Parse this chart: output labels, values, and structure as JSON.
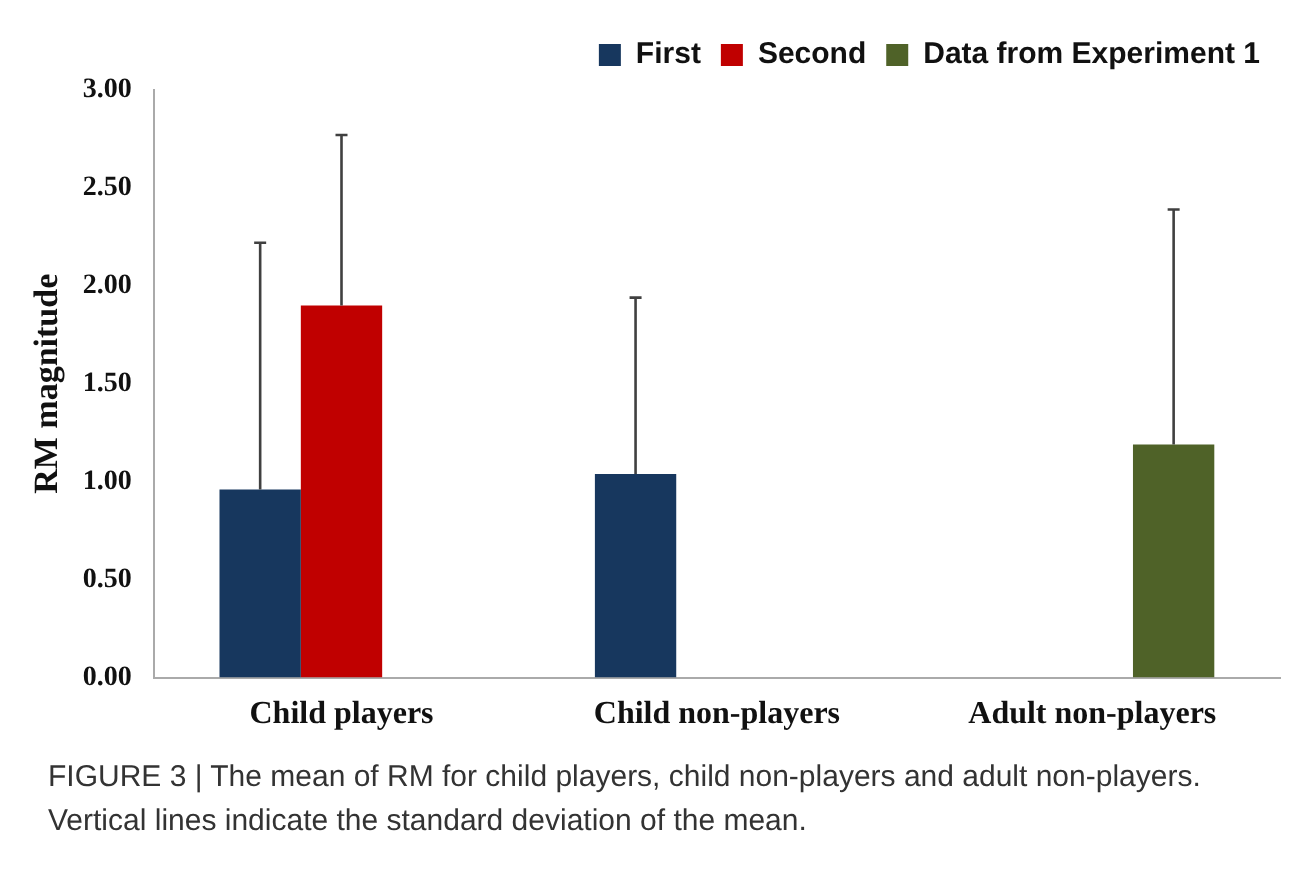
{
  "chart_data": {
    "type": "bar",
    "ylabel": "RM magnitude",
    "categories": [
      "Child players",
      "Child non-players",
      "Adult non-players"
    ],
    "series": [
      {
        "name": "First",
        "color": "#17375e",
        "values": [
          0.96,
          1.04,
          null
        ],
        "errors": [
          [
            0.96,
            2.22
          ],
          [
            1.04,
            1.94
          ],
          null
        ]
      },
      {
        "name": "Second",
        "color": "#c00000",
        "values": [
          1.9,
          null,
          null
        ],
        "errors": [
          [
            1.9,
            2.77
          ],
          null,
          null
        ]
      },
      {
        "name": "Data from Experiment 1",
        "color": "#4f6228",
        "values": [
          null,
          null,
          1.19
        ],
        "errors": [
          null,
          null,
          [
            1.19,
            2.39
          ]
        ]
      }
    ],
    "ylim": [
      0,
      3
    ],
    "yticks": [
      {
        "value": 0,
        "label": "0.00"
      },
      {
        "value": 0.5,
        "label": "0.50"
      },
      {
        "value": 1,
        "label": "1.00"
      },
      {
        "value": 1.5,
        "label": "1.50"
      },
      {
        "value": 2,
        "label": "2.00"
      },
      {
        "value": 2.5,
        "label": "2.50"
      },
      {
        "value": 3,
        "label": "3.00"
      }
    ],
    "grid": false,
    "legend": "top right",
    "annotations": [
      "FIGURE 3 | The mean of RM for child players, child non-players and adult non-players. Vertical lines indicate the standard deviation of the mean."
    ]
  }
}
